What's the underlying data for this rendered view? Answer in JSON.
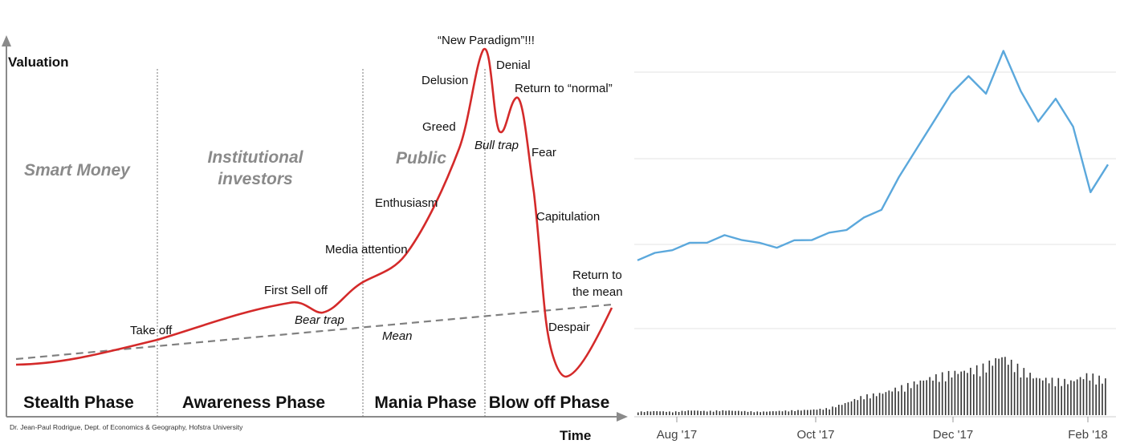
{
  "chart_data": [
    {
      "type": "line",
      "ylabel": "Valuation",
      "xlabel": "Time",
      "credit": "Dr. Jean-Paul Rodrigue, Dept. of Economics & Geography, Hofstra University",
      "colors": {
        "valuation": "#d42a2a",
        "mean": "#808080"
      },
      "actors": [
        "Smart Money",
        "Institutional investors",
        "Public"
      ],
      "actor_lines": {
        "institutional": [
          "Institutional",
          "investors"
        ]
      },
      "phases": [
        "Stealth Phase",
        "Awareness Phase",
        "Mania Phase",
        "Blow off Phase"
      ],
      "annotations": {
        "take_off": "Take off",
        "first_sell_off": "First Sell off",
        "bear_trap": "Bear trap",
        "media_attention": "Media attention",
        "enthusiasm": "Enthusiasm",
        "greed": "Greed",
        "delusion": "Delusion",
        "new_paradigm": "“New Paradigm”!!!",
        "denial": "Denial",
        "return_normal": "Return to “normal”",
        "bull_trap": "Bull trap",
        "fear": "Fear",
        "capitulation": "Capitulation",
        "return_mean_1": "Return to",
        "return_mean_2": "the mean",
        "despair": "Despair",
        "mean": "Mean"
      }
    },
    {
      "type": "line",
      "x_ticks": [
        "Aug '17",
        "Oct '17",
        "Dec '17",
        "Feb '18"
      ],
      "colors": {
        "price": "#5ba8dc",
        "volume": "#333333",
        "grid": "#e3e3e3"
      },
      "price": [
        0.18,
        0.2,
        0.22,
        0.24,
        0.25,
        0.27,
        0.26,
        0.24,
        0.23,
        0.25,
        0.26,
        0.28,
        0.3,
        0.34,
        0.38,
        0.5,
        0.62,
        0.72,
        0.84,
        0.9,
        0.84,
        1.0,
        0.85,
        0.72,
        0.82,
        0.7,
        0.45,
        0.55
      ],
      "volume": [
        0.05,
        0.06,
        0.05,
        0.07,
        0.06,
        0.07,
        0.06,
        0.05,
        0.06,
        0.07,
        0.08,
        0.1,
        0.18,
        0.28,
        0.32,
        0.4,
        0.48,
        0.56,
        0.62,
        0.66,
        0.72,
        0.88,
        0.7,
        0.55,
        0.52,
        0.5,
        0.6,
        0.52
      ]
    }
  ]
}
